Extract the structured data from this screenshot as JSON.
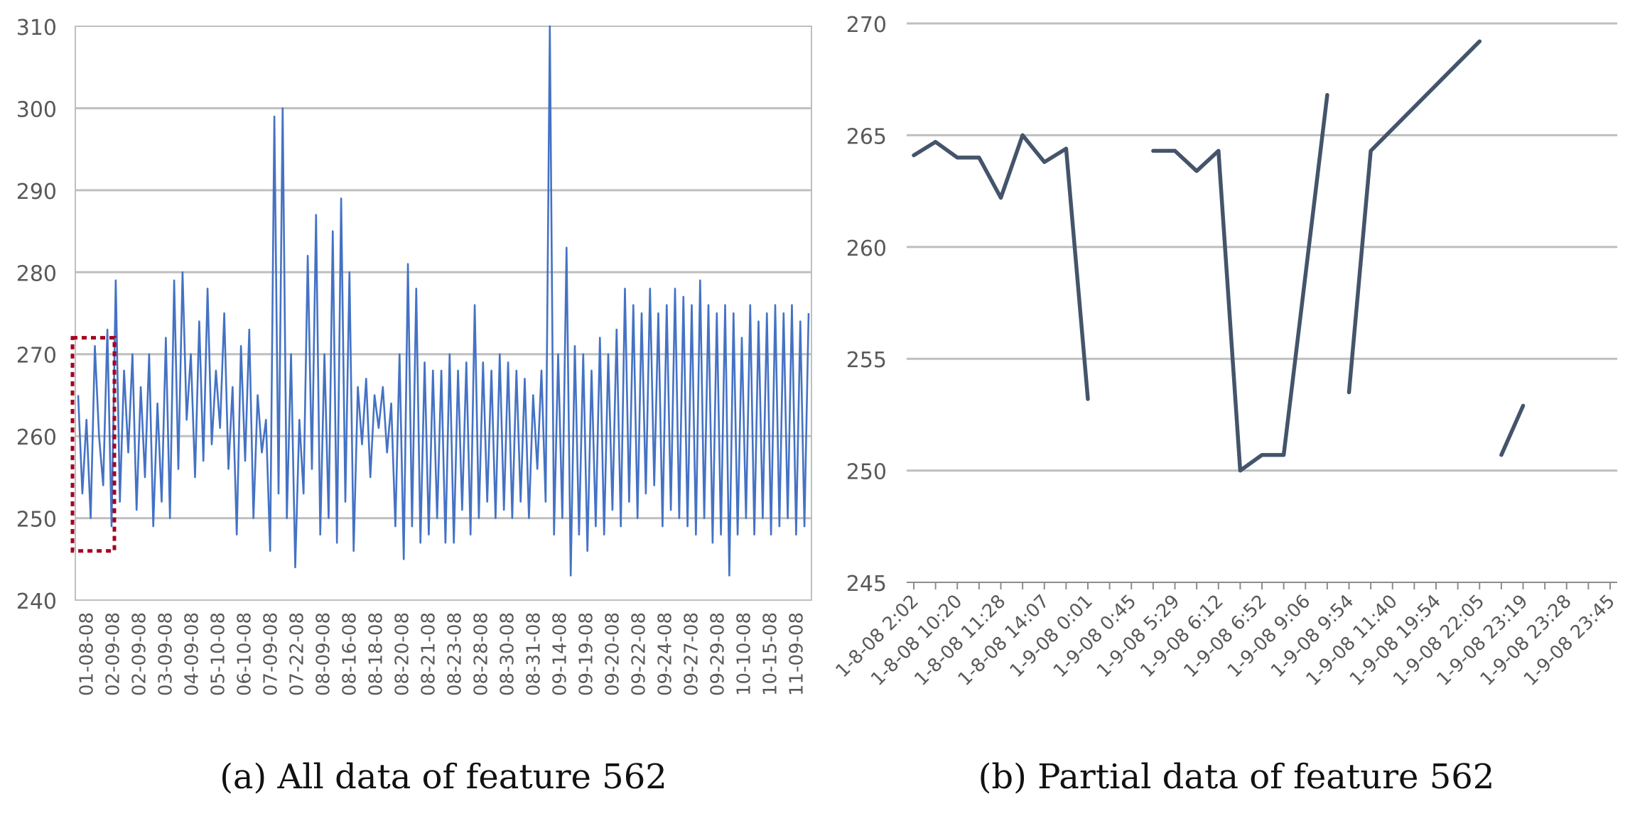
{
  "chart_data": [
    {
      "type": "line",
      "caption": "(a) All data of feature 562",
      "ylim": [
        240,
        310
      ],
      "y_ticks": [
        240,
        250,
        260,
        270,
        280,
        290,
        300,
        310
      ],
      "grid": true,
      "x_tick_labels": [
        "01-08-08",
        "02-09-08",
        "02-09-08",
        "03-09-08",
        "04-09-08",
        "05-10-08",
        "06-10-08",
        "07-09-08",
        "07-22-08",
        "08-09-08",
        "08-16-08",
        "08-18-08",
        "08-20-08",
        "08-21-08",
        "08-23-08",
        "08-28-08",
        "08-30-08",
        "08-31-08",
        "09-14-08",
        "09-19-08",
        "09-20-08",
        "09-22-08",
        "09-24-08",
        "09-27-08",
        "09-29-08",
        "10-10-08",
        "10-15-08",
        "11-09-08"
      ],
      "series": [
        {
          "color": "#4472C4",
          "values": [
            265,
            253,
            262,
            250,
            271,
            260,
            254,
            273,
            249,
            279,
            252,
            268,
            258,
            270,
            251,
            266,
            255,
            270,
            249,
            264,
            252,
            272,
            250,
            279,
            256,
            280,
            262,
            270,
            255,
            274,
            257,
            278,
            259,
            268,
            261,
            275,
            256,
            266,
            248,
            271,
            257,
            273,
            250,
            265,
            258,
            262,
            246,
            299,
            253,
            300,
            250,
            270,
            244,
            262,
            253,
            282,
            256,
            287,
            248,
            270,
            250,
            285,
            247,
            289,
            252,
            280,
            246,
            266,
            259,
            267,
            255,
            265,
            261,
            266,
            258,
            264,
            249,
            270,
            245,
            281,
            249,
            278,
            247,
            269,
            248,
            268,
            250,
            268,
            247,
            270,
            247,
            268,
            251,
            269,
            248,
            276,
            250,
            269,
            252,
            268,
            250,
            270,
            251,
            269,
            250,
            268,
            252,
            267,
            250,
            265,
            256,
            268,
            252,
            310,
            248,
            270,
            250,
            283,
            243,
            271,
            248,
            270,
            246,
            268,
            249,
            272,
            248,
            270,
            251,
            273,
            249,
            278,
            252,
            276,
            250,
            275,
            253,
            278,
            254,
            275,
            249,
            276,
            251,
            278,
            250,
            277,
            249,
            276,
            248,
            279,
            250,
            276,
            247,
            275,
            248,
            276,
            243,
            275,
            248,
            272,
            250,
            276,
            248,
            274,
            250,
            275,
            248,
            276,
            249,
            275,
            250,
            276,
            248,
            274,
            249,
            275
          ]
        }
      ],
      "highlight_region": {
        "x_range": [
          0,
          8
        ],
        "y_range": [
          246,
          272
        ],
        "style": "dashed",
        "color": "#A50021"
      }
    },
    {
      "type": "line",
      "caption": "(b) Partial data of feature 562",
      "ylim": [
        245,
        270
      ],
      "y_ticks": [
        245,
        250,
        255,
        260,
        265,
        270
      ],
      "grid": true,
      "x_tick_labels": [
        "1-8-08 2:02",
        "1-8-08 10:20",
        "1-8-08 11:28",
        "1-8-08 14:07",
        "1-9-08 0:01",
        "1-9-08 0:45",
        "1-9-08 5:29",
        "1-9-08 6:12",
        "1-9-08 6:52",
        "1-9-08 9:06",
        "1-9-08 9:54",
        "1-9-08 11:40",
        "1-9-08 19:54",
        "1-9-08 22:05",
        "1-9-08 23:19",
        "1-9-08 23:28",
        "1-9-08 23:45"
      ],
      "series": [
        {
          "color": "#44546A",
          "x": [
            0,
            1,
            2,
            3,
            4,
            5,
            6,
            7,
            8,
            11,
            12,
            13,
            14,
            15,
            16,
            17,
            19,
            20,
            21,
            26,
            27,
            28
          ],
          "y": [
            264.1,
            264.7,
            264.0,
            264.0,
            262.2,
            265.0,
            263.8,
            264.4,
            253.2,
            264.3,
            264.3,
            263.4,
            264.3,
            250.0,
            250.7,
            250.7,
            266.8,
            253.5,
            264.3,
            269.2,
            250.7,
            252.9
          ],
          "segments": [
            [
              0,
              9
            ],
            [
              9,
              17
            ],
            [
              17,
              20
            ],
            [
              20,
              22
            ]
          ]
        }
      ]
    }
  ]
}
